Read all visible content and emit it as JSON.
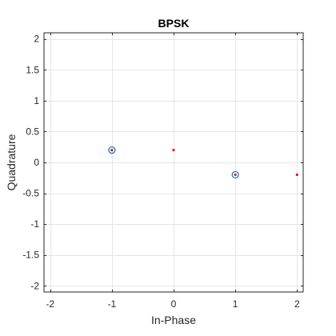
{
  "chart_data": {
    "type": "scatter",
    "title": "BPSK",
    "xlabel": "In-Phase",
    "ylabel": "Quadrature",
    "xlim": [
      -2.1,
      2.1
    ],
    "ylim": [
      -2.1,
      2.1
    ],
    "xticks": [
      -2,
      -1,
      0,
      1,
      2
    ],
    "xtick_labels": [
      "-2",
      "-1",
      "0",
      "1",
      "2"
    ],
    "yticks": [
      2,
      1.5,
      1,
      0.5,
      0,
      -0.5,
      -1,
      -1.5,
      -2
    ],
    "ytick_labels": [
      "2",
      "1.5",
      "1",
      "0.5",
      "0",
      "-0.5",
      "-1",
      "-1.5",
      "-2"
    ],
    "grid": true,
    "series": [
      {
        "marker": "circle-open",
        "color": "#0072BD",
        "points": [
          {
            "x": -1,
            "y": 0.2
          },
          {
            "x": 1,
            "y": -0.2
          }
        ]
      },
      {
        "marker": "dot",
        "color": "#FF0000",
        "points": [
          {
            "x": -1,
            "y": 0.2
          },
          {
            "x": 1,
            "y": -0.2
          },
          {
            "x": 0,
            "y": 0.2
          },
          {
            "x": 2,
            "y": -0.2
          }
        ]
      }
    ]
  }
}
